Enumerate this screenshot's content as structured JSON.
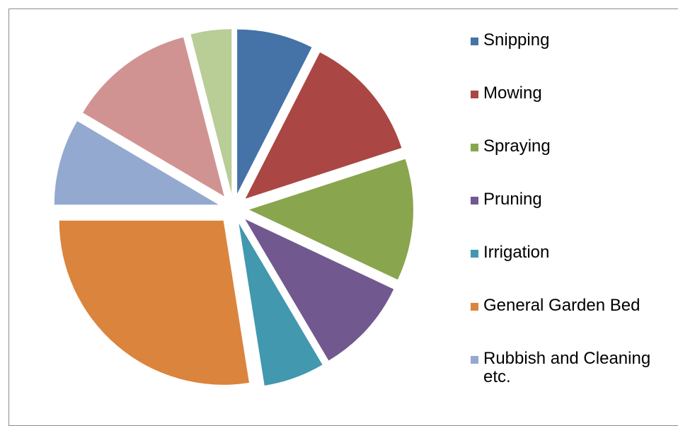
{
  "chart_data": {
    "type": "pie",
    "categories": [
      "Snipping",
      "Mowing",
      "Spraying",
      "Pruning",
      "Irrigation",
      "General Garden Bed",
      "Rubbish and Cleaning etc.",
      null,
      null
    ],
    "values": [
      7.5,
      12.5,
      12,
      9.5,
      6,
      27.5,
      8.5,
      12.5,
      4
    ],
    "colors": [
      "#4572a7",
      "#aa4643",
      "#89a54e",
      "#71588f",
      "#4198af",
      "#db843d",
      "#93a9cf",
      "#d19392",
      "#b9cd96"
    ],
    "exploded": true
  }
}
